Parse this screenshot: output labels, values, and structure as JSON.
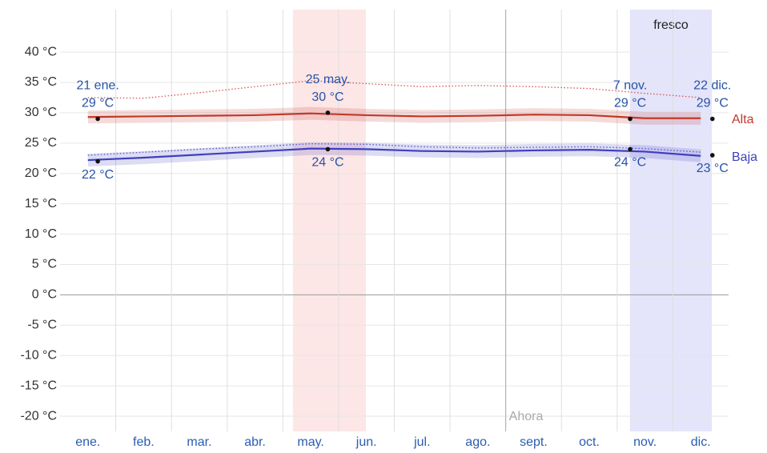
{
  "chart_data": {
    "type": "line",
    "categories": [
      "ene.",
      "feb.",
      "mar.",
      "abr.",
      "may.",
      "jun.",
      "jul.",
      "ago.",
      "sept.",
      "oct.",
      "nov.",
      "dic."
    ],
    "series": [
      {
        "name": "Alta",
        "color": "#c0392b",
        "values": [
          29.3,
          29.4,
          29.5,
          29.6,
          29.9,
          29.6,
          29.4,
          29.5,
          29.7,
          29.6,
          29.1,
          29.1
        ]
      },
      {
        "name": "Baja",
        "color": "#3f3fbf",
        "values": [
          22.2,
          22.6,
          23.1,
          23.6,
          24.1,
          24.0,
          23.7,
          23.6,
          23.8,
          23.9,
          23.6,
          22.9
        ]
      }
    ],
    "dotted_series": [
      {
        "color": "#d9534f",
        "values": [
          32.5,
          32.4,
          33.3,
          34.3,
          35.3,
          34.8,
          34.3,
          34.5,
          34.3,
          34.0,
          33.2,
          32.5
        ]
      },
      {
        "color": "#5a5ad0",
        "values": [
          23.0,
          23.5,
          24.0,
          24.4,
          24.9,
          24.8,
          24.4,
          24.2,
          24.3,
          24.4,
          24.1,
          23.5
        ]
      }
    ],
    "extremes": [
      {
        "date": "21 ene.",
        "high": 29,
        "high_label": "29 °C",
        "low": 22,
        "low_label": "22 °C"
      },
      {
        "date": "25 may.",
        "high": 30,
        "high_label": "30 °C",
        "low": 24,
        "low_label": "24 °C"
      },
      {
        "date": "7 nov.",
        "high": 29,
        "high_label": "29 °C",
        "low": 24,
        "low_label": "24 °C"
      },
      {
        "date": "22 dic.",
        "high": 29,
        "high_label": "29 °C",
        "low": 23,
        "low_label": "23 °C"
      }
    ],
    "seasons": [
      {
        "from": "may.",
        "to": "jun.",
        "color": "#fde6e6"
      },
      {
        "label": "fresco",
        "from": "nov.",
        "to": "dic.",
        "color": "#e4e4fa"
      }
    ],
    "now": {
      "label": "Ahora",
      "category": "sept."
    },
    "ylim": [
      -22.5,
      47
    ],
    "yticks": [
      {
        "value": 40,
        "label": "40 °C"
      },
      {
        "value": 35,
        "label": "35 °C"
      },
      {
        "value": 30,
        "label": "30 °C"
      },
      {
        "value": 25,
        "label": "25 °C"
      },
      {
        "value": 20,
        "label": "20 °C"
      },
      {
        "value": 15,
        "label": "15 °C"
      },
      {
        "value": 10,
        "label": "10 °C"
      },
      {
        "value": 5,
        "label": "5 °C"
      },
      {
        "value": 0,
        "label": "0 °C"
      },
      {
        "value": -5,
        "label": "-5 °C"
      },
      {
        "value": -10,
        "label": "-10 °C"
      },
      {
        "value": -15,
        "label": "-15 °C"
      },
      {
        "value": -20,
        "label": "-20 °C"
      }
    ],
    "grid": true
  }
}
